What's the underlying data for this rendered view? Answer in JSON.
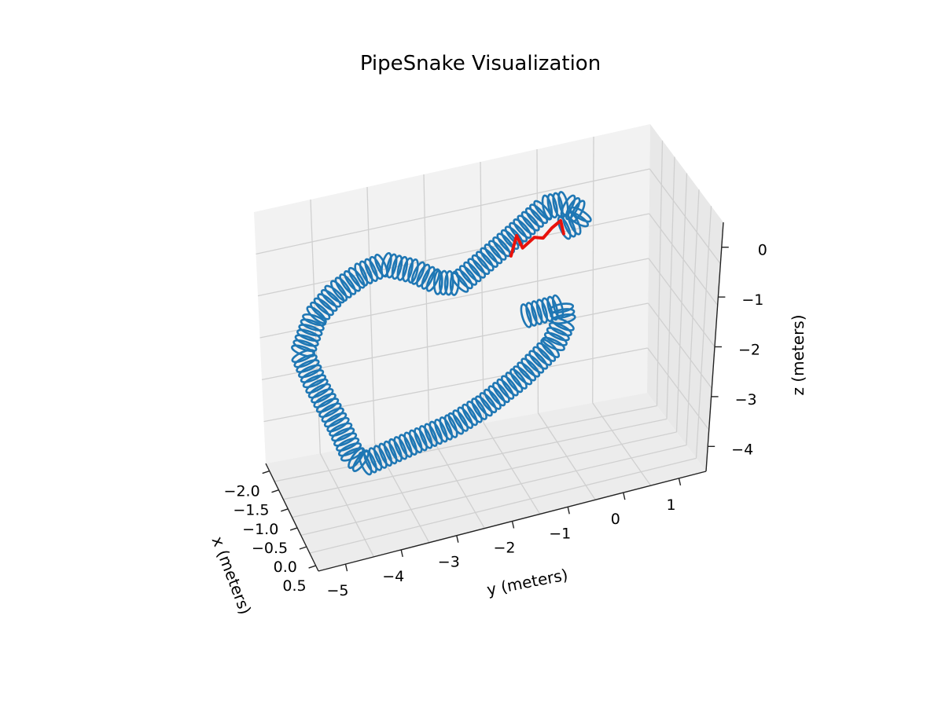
{
  "chart_data": {
    "type": "line3d",
    "title": "PipeSnake Visualization",
    "xlabel": "x (meters)",
    "ylabel": "y (meters)",
    "zlabel": "z (meters)",
    "xlim": [
      -2.25,
      0.5
    ],
    "ylim": [
      -5.5,
      1.2
    ],
    "zlim": [
      -4.3,
      0.5
    ],
    "x_ticks": [
      "−2.0",
      "−1.5",
      "−1.0",
      "−0.5",
      "0.0",
      "0.5"
    ],
    "y_ticks": [
      "−5",
      "−4",
      "−3",
      "−2",
      "−1",
      "0",
      "1"
    ],
    "z_ticks": [
      "0",
      "−1",
      "−2",
      "−3",
      "−4"
    ],
    "grid": true,
    "colors": {
      "pipe": "#1f77b4",
      "snake": "#e8120c",
      "pane": "#f2f2f2",
      "grid": "#d0d0d0"
    },
    "series": [
      {
        "kind": "pipe-helix",
        "points": [
          [
            -0.3,
            -1.2,
            -1.8
          ],
          [
            -0.3,
            -0.6,
            -1.75
          ],
          [
            -0.3,
            -0.55,
            -2.05
          ],
          [
            -0.3,
            -0.75,
            -2.45
          ],
          [
            -0.3,
            -1.3,
            -2.9
          ],
          [
            -0.3,
            -1.95,
            -3.3
          ],
          [
            -0.3,
            -2.5,
            -3.55
          ],
          [
            -0.3,
            -3.3,
            -3.75
          ],
          [
            -0.3,
            -4.05,
            -3.95
          ],
          [
            -0.3,
            -4.25,
            -3.75
          ],
          [
            -0.3,
            -4.45,
            -3.2
          ],
          [
            -0.3,
            -4.85,
            -2.25
          ],
          [
            -0.3,
            -5.05,
            -1.65
          ],
          [
            -0.3,
            -4.8,
            -1.0
          ],
          [
            -0.3,
            -4.45,
            -0.65
          ],
          [
            -0.3,
            -4.0,
            -0.4
          ],
          [
            -0.3,
            -3.6,
            -0.3
          ],
          [
            -0.3,
            -3.1,
            -0.55
          ],
          [
            -0.3,
            -2.7,
            -0.85
          ],
          [
            -0.3,
            -2.35,
            -0.95
          ],
          [
            -0.3,
            -2.05,
            -0.75
          ],
          [
            -0.3,
            -1.4,
            -0.3
          ],
          [
            -0.3,
            -0.85,
            0.1
          ],
          [
            -0.3,
            -0.55,
            0.1
          ],
          [
            -0.3,
            -0.25,
            -0.15
          ],
          [
            -0.3,
            -0.35,
            -0.3
          ],
          [
            -0.3,
            -0.55,
            -0.35
          ]
        ]
      },
      {
        "kind": "snake",
        "points": [
          [
            -0.3,
            -1.45,
            -0.65
          ],
          [
            -0.3,
            -1.35,
            -0.3
          ],
          [
            -0.3,
            -1.25,
            -0.55
          ],
          [
            -0.3,
            -1.05,
            -0.4
          ],
          [
            -0.3,
            -0.9,
            -0.45
          ],
          [
            -0.3,
            -0.75,
            -0.3
          ],
          [
            -0.3,
            -0.6,
            -0.2
          ],
          [
            -0.3,
            -0.55,
            -0.45
          ]
        ]
      }
    ]
  }
}
